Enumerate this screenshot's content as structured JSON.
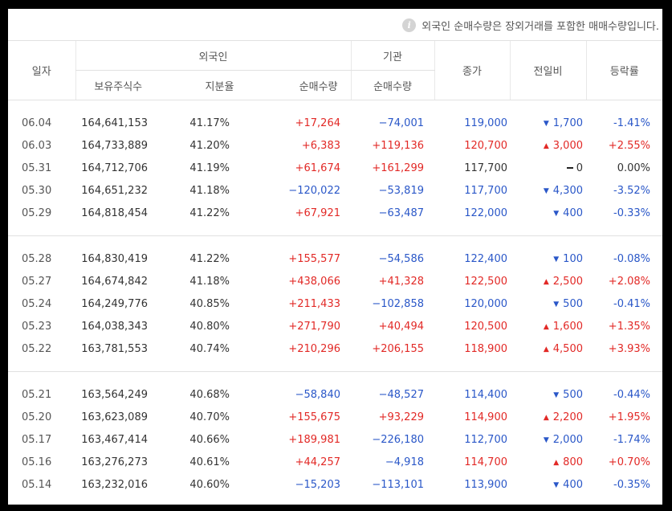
{
  "notice": {
    "text": "외국인 순매수량은 장외거래를 포함한 매매수량입니다.",
    "icon": "info-icon"
  },
  "colors": {
    "up": "#e22926",
    "down": "#2a57c8"
  },
  "header": {
    "date": "일자",
    "foreign": "외국인",
    "institution": "기관",
    "close": "종가",
    "diff": "전일비",
    "rate": "등락률",
    "holdings": "보유주식수",
    "ratio": "지분율",
    "foreign_net": "순매수량",
    "inst_net": "순매수량"
  },
  "rows": [
    {
      "date": "06.04",
      "hold": "164,641,153",
      "ratio": "41.17%",
      "fnet": "+17,264",
      "inet": "−74,001",
      "close": "119,000",
      "dir": "down",
      "diff": "1,700",
      "rate": "-1.41%"
    },
    {
      "date": "06.03",
      "hold": "164,733,889",
      "ratio": "41.20%",
      "fnet": "+6,383",
      "inet": "+119,136",
      "close": "120,700",
      "dir": "up",
      "diff": "3,000",
      "rate": "+2.55%"
    },
    {
      "date": "05.31",
      "hold": "164,712,706",
      "ratio": "41.19%",
      "fnet": "+61,674",
      "inet": "+161,299",
      "close": "117,700",
      "dir": "flat",
      "diff": "0",
      "rate": "0.00%"
    },
    {
      "date": "05.30",
      "hold": "164,651,232",
      "ratio": "41.18%",
      "fnet": "−120,022",
      "inet": "−53,819",
      "close": "117,700",
      "dir": "down",
      "diff": "4,300",
      "rate": "-3.52%"
    },
    {
      "date": "05.29",
      "hold": "164,818,454",
      "ratio": "41.22%",
      "fnet": "+67,921",
      "inet": "−63,487",
      "close": "122,000",
      "dir": "down",
      "diff": "400",
      "rate": "-0.33%"
    },
    {
      "date": "05.28",
      "hold": "164,830,419",
      "ratio": "41.22%",
      "fnet": "+155,577",
      "inet": "−54,586",
      "close": "122,400",
      "dir": "down",
      "diff": "100",
      "rate": "-0.08%"
    },
    {
      "date": "05.27",
      "hold": "164,674,842",
      "ratio": "41.18%",
      "fnet": "+438,066",
      "inet": "+41,328",
      "close": "122,500",
      "dir": "up",
      "diff": "2,500",
      "rate": "+2.08%"
    },
    {
      "date": "05.24",
      "hold": "164,249,776",
      "ratio": "40.85%",
      "fnet": "+211,433",
      "inet": "−102,858",
      "close": "120,000",
      "dir": "down",
      "diff": "500",
      "rate": "-0.41%"
    },
    {
      "date": "05.23",
      "hold": "164,038,343",
      "ratio": "40.80%",
      "fnet": "+271,790",
      "inet": "+40,494",
      "close": "120,500",
      "dir": "up",
      "diff": "1,600",
      "rate": "+1.35%"
    },
    {
      "date": "05.22",
      "hold": "163,781,553",
      "ratio": "40.74%",
      "fnet": "+210,296",
      "inet": "+206,155",
      "close": "118,900",
      "dir": "up",
      "diff": "4,500",
      "rate": "+3.93%"
    },
    {
      "date": "05.21",
      "hold": "163,564,249",
      "ratio": "40.68%",
      "fnet": "−58,840",
      "inet": "−48,527",
      "close": "114,400",
      "dir": "down",
      "diff": "500",
      "rate": "-0.44%"
    },
    {
      "date": "05.20",
      "hold": "163,623,089",
      "ratio": "40.70%",
      "fnet": "+155,675",
      "inet": "+93,229",
      "close": "114,900",
      "dir": "up",
      "diff": "2,200",
      "rate": "+1.95%"
    },
    {
      "date": "05.17",
      "hold": "163,467,414",
      "ratio": "40.66%",
      "fnet": "+189,981",
      "inet": "−226,180",
      "close": "112,700",
      "dir": "down",
      "diff": "2,000",
      "rate": "-1.74%"
    },
    {
      "date": "05.16",
      "hold": "163,276,273",
      "ratio": "40.61%",
      "fnet": "+44,257",
      "inet": "−4,918",
      "close": "114,700",
      "dir": "up",
      "diff": "800",
      "rate": "+0.70%"
    },
    {
      "date": "05.14",
      "hold": "163,232,016",
      "ratio": "40.60%",
      "fnet": "−15,203",
      "inet": "−113,101",
      "close": "113,900",
      "dir": "down",
      "diff": "400",
      "rate": "-0.35%"
    }
  ]
}
